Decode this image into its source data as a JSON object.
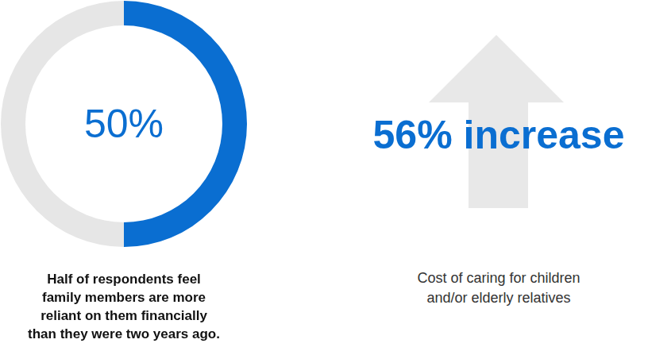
{
  "chart_data": {
    "type": "doughnut",
    "values": [
      50,
      50
    ],
    "colors": [
      "#0a6ed1",
      "#e6e6e6"
    ],
    "annotation": "50%",
    "caption": [
      "Half of respondents feel",
      "family members are more",
      "reliant on them financially",
      "than they were two years ago."
    ]
  },
  "stat": {
    "text": "56% increase",
    "caption": [
      "Cost of caring for children",
      "and/or elderly relatives"
    ]
  }
}
